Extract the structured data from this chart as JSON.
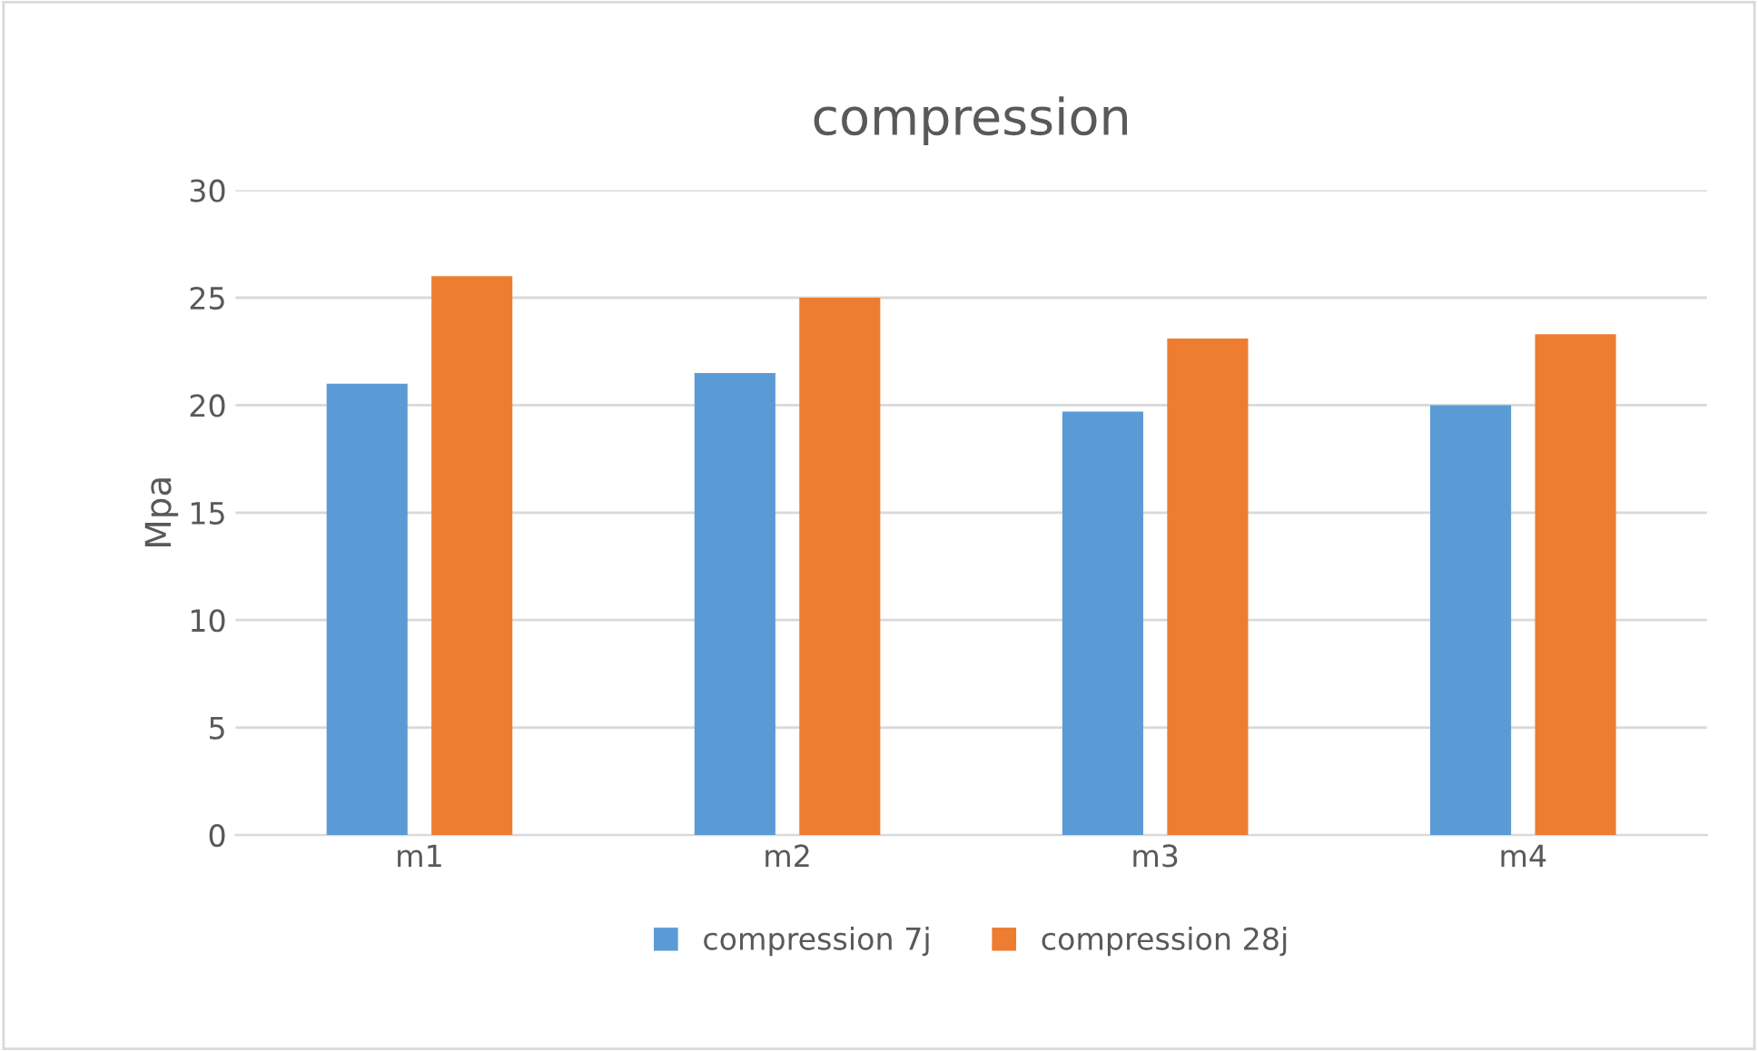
{
  "chart_data": {
    "type": "bar",
    "title": "compression",
    "ylabel": "Mpa",
    "categories": [
      "m1",
      "m2",
      "m3",
      "m4"
    ],
    "series": [
      {
        "name": "compression 7j",
        "color": "#5b9bd5",
        "values": [
          21,
          21.5,
          19.7,
          20
        ]
      },
      {
        "name": "compression 28j",
        "color": "#ed7d31",
        "values": [
          26,
          25,
          23.1,
          23.3
        ]
      }
    ],
    "ylim": [
      0,
      30
    ],
    "yticks": [
      0,
      5,
      10,
      15,
      20,
      25,
      30
    ],
    "grid": "y",
    "legend": "bottom"
  }
}
